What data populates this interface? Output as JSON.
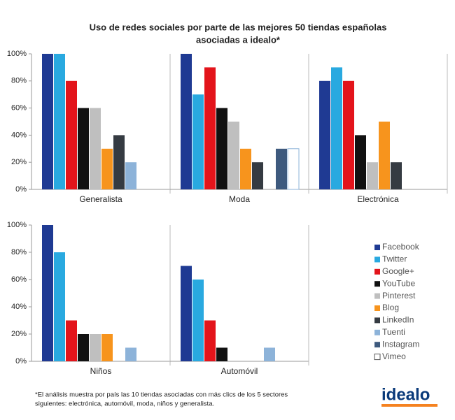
{
  "chart_data": {
    "type": "bar",
    "title": [
      "Uso de redes sociales por parte de las mejores 50 tiendas españolas",
      "asociadas a idealo*"
    ],
    "categories": [
      "Generalista",
      "Moda",
      "Electrónica",
      "Niños",
      "Automóvil"
    ],
    "series": [
      {
        "name": "Facebook",
        "color": "#1f3a93",
        "values": [
          100,
          100,
          80,
          100,
          70
        ]
      },
      {
        "name": "Twitter",
        "color": "#29a9e0",
        "values": [
          100,
          70,
          90,
          80,
          60
        ]
      },
      {
        "name": "Google+",
        "color": "#e3141b",
        "values": [
          80,
          90,
          80,
          30,
          30
        ]
      },
      {
        "name": "YouTube",
        "color": "#111111",
        "values": [
          60,
          60,
          40,
          20,
          10
        ]
      },
      {
        "name": "Pinterest",
        "color": "#bfbfbf",
        "values": [
          60,
          50,
          20,
          20,
          0
        ]
      },
      {
        "name": "Blog",
        "color": "#f7941d",
        "values": [
          30,
          30,
          50,
          20,
          0
        ]
      },
      {
        "name": "LinkedIn",
        "color": "#353b42",
        "values": [
          40,
          20,
          20,
          0,
          0
        ]
      },
      {
        "name": "Tuenti",
        "color": "#8db3d9",
        "values": [
          20,
          0,
          0,
          10,
          10
        ]
      },
      {
        "name": "Instagram",
        "color": "#3e5a7e",
        "values": [
          0,
          30,
          0,
          0,
          0
        ]
      },
      {
        "name": "Vimeo",
        "color": "#ffffff",
        "values": [
          0,
          30,
          0,
          0,
          0
        ]
      }
    ],
    "ylim": [
      0,
      100
    ],
    "yticks": [
      {
        "value": 0,
        "label": "0%"
      },
      {
        "value": 20,
        "label": "20%"
      },
      {
        "value": 40,
        "label": "40%"
      },
      {
        "value": 60,
        "label": "60%"
      },
      {
        "value": 80,
        "label": "80%"
      },
      {
        "value": 100,
        "label": "100%"
      }
    ],
    "legend": "right",
    "footnote": [
      "*El análisis muestra por país las 10 tiendas asociadas con más clics de los 5 sectores",
      "siguientes: electrónica, automóvil, moda, niños y generalista."
    ],
    "logo": "idealo"
  }
}
